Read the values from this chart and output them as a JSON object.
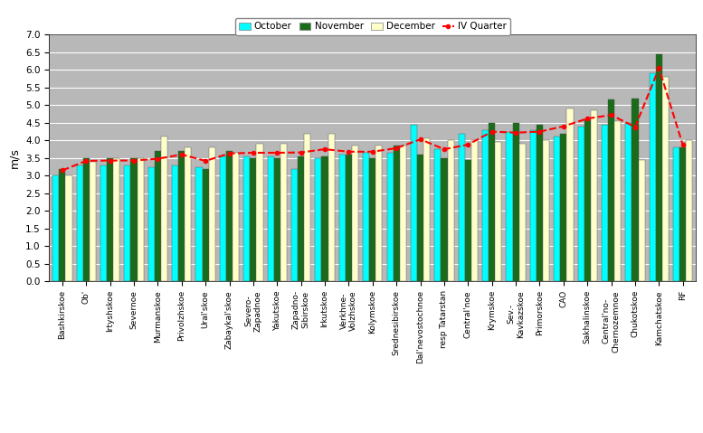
{
  "categories": [
    "Bashkirskoe",
    "Ob'",
    "Irtyshskoe",
    "Severnoe",
    "Murmanskoe",
    "Privolzhskoe",
    "Ural'skoe",
    "Zabaykal'skoe",
    "Severo-\nZapadnoe",
    "Yakutskoe",
    "Zapadno-\nSibirskoe",
    "Irkutskoe",
    "Verkhne-\nVolzhskoe",
    "Kolymskoe",
    "Srednesibirskoe",
    "Dal'nevostochnoe",
    "resp Tatarstan",
    "Central'noe",
    "Krymskoe",
    "Sev.-\nKavkazskoe",
    "Primorskoe",
    "CAO",
    "Sakhalinskoe",
    "Central'no-\nChernozemnoe",
    "Chukotskoe",
    "Kamchatskoe",
    "RF"
  ],
  "october": [
    3.0,
    3.3,
    3.3,
    3.3,
    3.25,
    3.3,
    3.25,
    3.55,
    3.55,
    3.55,
    3.2,
    3.5,
    3.6,
    3.65,
    3.65,
    4.45,
    3.75,
    4.2,
    4.3,
    4.25,
    4.3,
    4.1,
    4.4,
    4.45,
    4.5,
    5.9,
    3.8
  ],
  "november": [
    3.2,
    3.5,
    3.5,
    3.5,
    3.7,
    3.7,
    3.2,
    3.7,
    3.5,
    3.5,
    3.55,
    3.55,
    3.6,
    3.5,
    3.85,
    3.6,
    3.5,
    3.45,
    4.5,
    4.5,
    4.45,
    4.2,
    4.6,
    5.15,
    5.2,
    6.45,
    3.8
  ],
  "december": [
    3.0,
    3.4,
    3.5,
    3.5,
    4.1,
    3.8,
    3.8,
    3.65,
    3.9,
    3.9,
    4.2,
    4.2,
    3.85,
    3.85,
    3.85,
    4.05,
    4.0,
    4.0,
    3.95,
    3.9,
    4.0,
    4.9,
    4.85,
    4.55,
    3.45,
    5.8,
    4.0
  ],
  "iv_quarter": [
    3.15,
    3.42,
    3.43,
    3.43,
    3.48,
    3.6,
    3.42,
    3.63,
    3.65,
    3.65,
    3.66,
    3.75,
    3.68,
    3.68,
    3.78,
    4.03,
    3.75,
    3.88,
    4.25,
    4.22,
    4.25,
    4.4,
    4.62,
    4.72,
    4.38,
    6.05,
    3.87
  ],
  "bar_color_oct": "#00FFFF",
  "bar_color_nov": "#1A6B1A",
  "bar_color_dec": "#FFFFCC",
  "line_color": "#FF0000",
  "plot_bg_color": "#B8B8B8",
  "fig_bg_color": "#FFFFFF",
  "ylabel": "m/s",
  "ylim": [
    0,
    7
  ],
  "yticks": [
    0,
    0.5,
    1.0,
    1.5,
    2.0,
    2.5,
    3.0,
    3.5,
    4.0,
    4.5,
    5.0,
    5.5,
    6.0,
    6.5,
    7.0
  ]
}
